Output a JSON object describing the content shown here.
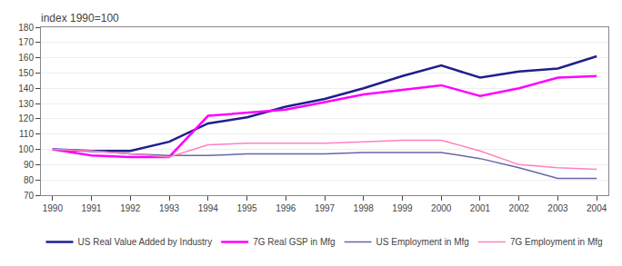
{
  "chart_data": {
    "type": "line",
    "title": "index 1990=100",
    "x": [
      1990,
      1991,
      1992,
      1993,
      1994,
      1995,
      1996,
      1997,
      1998,
      1999,
      2000,
      2001,
      2002,
      2003,
      2004
    ],
    "series": [
      {
        "name": "US Real Value Added by Industry",
        "color": "#1F1F8C",
        "values": [
          100,
          99,
          99,
          105,
          117,
          121,
          128,
          133,
          140,
          148,
          155,
          147,
          151,
          153,
          161
        ]
      },
      {
        "name": "7G Real GSP in Mfg",
        "color": "#FF00FF",
        "values": [
          100,
          96,
          95,
          95,
          122,
          124,
          126,
          131,
          136,
          139,
          142,
          135,
          140,
          147,
          148
        ]
      },
      {
        "name": "US Employment in Mfg",
        "color": "#6666AA",
        "values": [
          100,
          99,
          97,
          96,
          96,
          97,
          97,
          97,
          98,
          98,
          98,
          94,
          88,
          81,
          81
        ]
      },
      {
        "name": "7G Employment in Mfg",
        "color": "#FF80C0",
        "values": [
          100,
          99,
          97,
          95,
          103,
          104,
          104,
          104,
          105,
          106,
          106,
          99,
          90,
          88,
          87
        ]
      }
    ],
    "xlim": [
      1989.7,
      2004.3
    ],
    "xticks": [
      1990,
      1991,
      1992,
      1993,
      1994,
      1995,
      1996,
      1997,
      1998,
      1999,
      2000,
      2001,
      2002,
      2003,
      2004
    ],
    "ylim": [
      70,
      180
    ],
    "yticks": [
      70,
      80,
      90,
      100,
      110,
      120,
      130,
      140,
      150,
      160,
      170,
      180
    ],
    "grid": "y",
    "legend": "bottom"
  }
}
